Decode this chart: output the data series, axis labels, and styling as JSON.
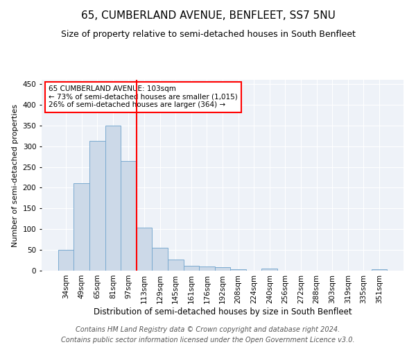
{
  "title": "65, CUMBERLAND AVENUE, BENFLEET, SS7 5NU",
  "subtitle": "Size of property relative to semi-detached houses in South Benfleet",
  "xlabel": "Distribution of semi-detached houses by size in South Benfleet",
  "ylabel": "Number of semi-detached properties",
  "categories": [
    "34sqm",
    "49sqm",
    "65sqm",
    "81sqm",
    "97sqm",
    "113sqm",
    "129sqm",
    "145sqm",
    "161sqm",
    "176sqm",
    "192sqm",
    "208sqm",
    "224sqm",
    "240sqm",
    "256sqm",
    "272sqm",
    "288sqm",
    "303sqm",
    "319sqm",
    "335sqm",
    "351sqm"
  ],
  "values": [
    50,
    210,
    312,
    350,
    265,
    103,
    55,
    27,
    12,
    10,
    9,
    4,
    0,
    5,
    0,
    0,
    0,
    0,
    0,
    0,
    3
  ],
  "bar_color": "#ccd9e8",
  "bar_edge_color": "#7aaad0",
  "vline_x": 4.5,
  "vline_color": "red",
  "annotation_title": "65 CUMBERLAND AVENUE: 103sqm",
  "annotation_line1": "← 73% of semi-detached houses are smaller (1,015)",
  "annotation_line2": "26% of semi-detached houses are larger (364) →",
  "annotation_box_color": "white",
  "annotation_box_edge": "red",
  "ylim": [
    0,
    460
  ],
  "yticks": [
    0,
    50,
    100,
    150,
    200,
    250,
    300,
    350,
    400,
    450
  ],
  "footer_line1": "Contains HM Land Registry data © Crown copyright and database right 2024.",
  "footer_line2": "Contains public sector information licensed under the Open Government Licence v3.0.",
  "background_color": "#eef2f8",
  "grid_color": "white",
  "title_fontsize": 11,
  "subtitle_fontsize": 9,
  "xlabel_fontsize": 8.5,
  "ylabel_fontsize": 8,
  "tick_fontsize": 7.5,
  "footer_fontsize": 7,
  "annotation_fontsize": 7.5
}
